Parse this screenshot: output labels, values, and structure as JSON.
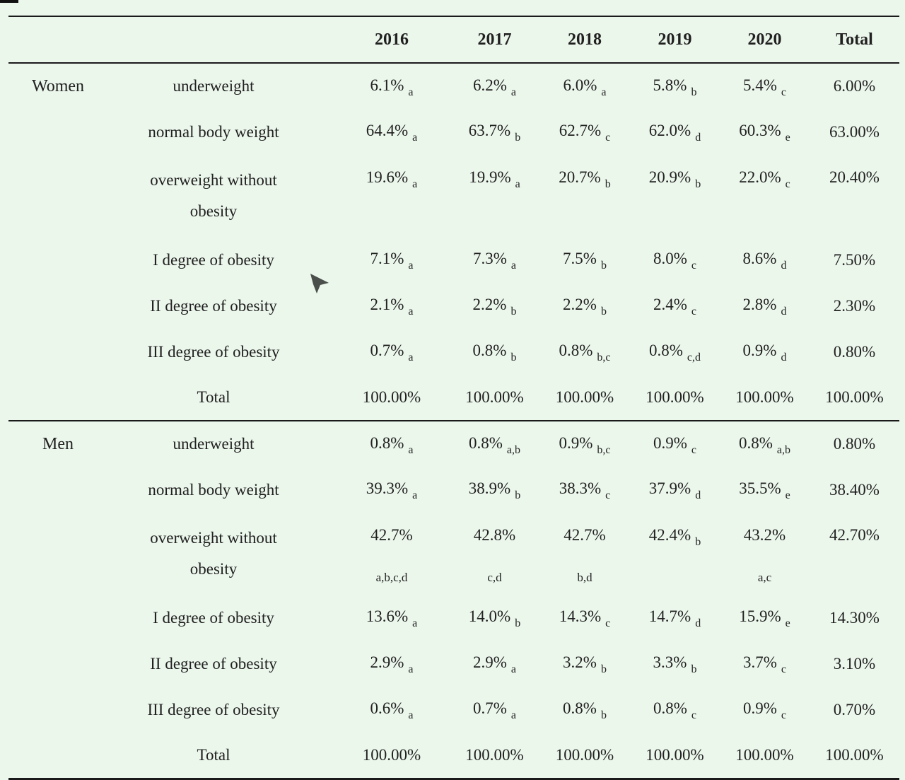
{
  "page": {
    "background_color": "#ecf7ec",
    "rule_color": "#1a1a1a",
    "text_color": "#212121",
    "cursor_color": "#4b4f4b"
  },
  "table": {
    "columns": [
      "2016",
      "2017",
      "2018",
      "2019",
      "2020",
      "Total"
    ],
    "sections": [
      {
        "group": "Women",
        "rows": [
          {
            "category": "underweight",
            "cells": [
              {
                "value": "6.1%",
                "sub": "a"
              },
              {
                "value": "6.2%",
                "sub": "a"
              },
              {
                "value": "6.0%",
                "sub": "a"
              },
              {
                "value": "5.8%",
                "sub": "b"
              },
              {
                "value": "5.4%",
                "sub": "c"
              },
              {
                "value": "6.00%",
                "sub": ""
              }
            ]
          },
          {
            "category": "normal body weight",
            "cells": [
              {
                "value": "64.4%",
                "sub": "a"
              },
              {
                "value": "63.7%",
                "sub": "b"
              },
              {
                "value": "62.7%",
                "sub": "c"
              },
              {
                "value": "62.0%",
                "sub": "d"
              },
              {
                "value": "60.3%",
                "sub": "e"
              },
              {
                "value": "63.00%",
                "sub": ""
              }
            ]
          },
          {
            "category": "overweight without obesity",
            "cells": [
              {
                "value": "19.6%",
                "sub": "a"
              },
              {
                "value": "19.9%",
                "sub": "a"
              },
              {
                "value": "20.7%",
                "sub": "b"
              },
              {
                "value": "20.9%",
                "sub": "b"
              },
              {
                "value": "22.0%",
                "sub": "c"
              },
              {
                "value": "20.40%",
                "sub": ""
              }
            ]
          },
          {
            "category": "I degree of obesity",
            "cells": [
              {
                "value": "7.1%",
                "sub": "a"
              },
              {
                "value": "7.3%",
                "sub": "a"
              },
              {
                "value": "7.5%",
                "sub": "b"
              },
              {
                "value": "8.0%",
                "sub": "c"
              },
              {
                "value": "8.6%",
                "sub": "d"
              },
              {
                "value": "7.50%",
                "sub": ""
              }
            ]
          },
          {
            "category": "II degree of obesity",
            "cells": [
              {
                "value": "2.1%",
                "sub": "a"
              },
              {
                "value": "2.2%",
                "sub": "b"
              },
              {
                "value": "2.2%",
                "sub": "b"
              },
              {
                "value": "2.4%",
                "sub": "c"
              },
              {
                "value": "2.8%",
                "sub": "d"
              },
              {
                "value": "2.30%",
                "sub": ""
              }
            ]
          },
          {
            "category": "III degree of obesity",
            "cells": [
              {
                "value": "0.7%",
                "sub": "a"
              },
              {
                "value": "0.8%",
                "sub": "b"
              },
              {
                "value": "0.8%",
                "sub": "b,c"
              },
              {
                "value": "0.8%",
                "sub": "c,d"
              },
              {
                "value": "0.9%",
                "sub": "d"
              },
              {
                "value": "0.80%",
                "sub": ""
              }
            ]
          },
          {
            "category": "Total",
            "cells": [
              {
                "value": "100.00%",
                "sub": ""
              },
              {
                "value": "100.00%",
                "sub": ""
              },
              {
                "value": "100.00%",
                "sub": ""
              },
              {
                "value": "100.00%",
                "sub": ""
              },
              {
                "value": "100.00%",
                "sub": ""
              },
              {
                "value": "100.00%",
                "sub": ""
              }
            ]
          }
        ]
      },
      {
        "group": "Men",
        "rows": [
          {
            "category": "underweight",
            "cells": [
              {
                "value": "0.8%",
                "sub": "a"
              },
              {
                "value": "0.8%",
                "sub": "a,b"
              },
              {
                "value": "0.9%",
                "sub": "b,c"
              },
              {
                "value": "0.9%",
                "sub": "c"
              },
              {
                "value": "0.8%",
                "sub": "a,b"
              },
              {
                "value": "0.80%",
                "sub": ""
              }
            ]
          },
          {
            "category": "normal body weight",
            "cells": [
              {
                "value": "39.3%",
                "sub": "a"
              },
              {
                "value": "38.9%",
                "sub": "b"
              },
              {
                "value": "38.3%",
                "sub": "c"
              },
              {
                "value": "37.9%",
                "sub": "d"
              },
              {
                "value": "35.5%",
                "sub": "e"
              },
              {
                "value": "38.40%",
                "sub": ""
              }
            ]
          },
          {
            "category": "overweight without obesity",
            "cells": [
              {
                "value": "42.7%",
                "sub": "",
                "sub_below": "a,b,c,d"
              },
              {
                "value": "42.8%",
                "sub": "",
                "sub_below": "c,d"
              },
              {
                "value": "42.7%",
                "sub": "",
                "sub_below": "b,d"
              },
              {
                "value": "42.4%",
                "sub": "b"
              },
              {
                "value": "43.2%",
                "sub": "",
                "sub_below": "a,c"
              },
              {
                "value": "42.70%",
                "sub": ""
              }
            ]
          },
          {
            "category": "I degree of obesity",
            "cells": [
              {
                "value": "13.6%",
                "sub": "a"
              },
              {
                "value": "14.0%",
                "sub": "b"
              },
              {
                "value": "14.3%",
                "sub": "c"
              },
              {
                "value": "14.7%",
                "sub": "d"
              },
              {
                "value": "15.9%",
                "sub": "e"
              },
              {
                "value": "14.30%",
                "sub": ""
              }
            ]
          },
          {
            "category": "II degree of obesity",
            "cells": [
              {
                "value": "2.9%",
                "sub": "a"
              },
              {
                "value": "2.9%",
                "sub": "a"
              },
              {
                "value": "3.2%",
                "sub": "b"
              },
              {
                "value": "3.3%",
                "sub": "b"
              },
              {
                "value": "3.7%",
                "sub": "c"
              },
              {
                "value": "3.10%",
                "sub": ""
              }
            ]
          },
          {
            "category": "III degree of obesity",
            "cells": [
              {
                "value": "0.6%",
                "sub": "a"
              },
              {
                "value": "0.7%",
                "sub": "a"
              },
              {
                "value": "0.8%",
                "sub": "b"
              },
              {
                "value": "0.8%",
                "sub": "c"
              },
              {
                "value": "0.9%",
                "sub": "c"
              },
              {
                "value": "0.70%",
                "sub": ""
              }
            ]
          },
          {
            "category": "Total",
            "cells": [
              {
                "value": "100.00%",
                "sub": ""
              },
              {
                "value": "100.00%",
                "sub": ""
              },
              {
                "value": "100.00%",
                "sub": ""
              },
              {
                "value": "100.00%",
                "sub": ""
              },
              {
                "value": "100.00%",
                "sub": ""
              },
              {
                "value": "100.00%",
                "sub": ""
              }
            ]
          }
        ]
      }
    ]
  }
}
